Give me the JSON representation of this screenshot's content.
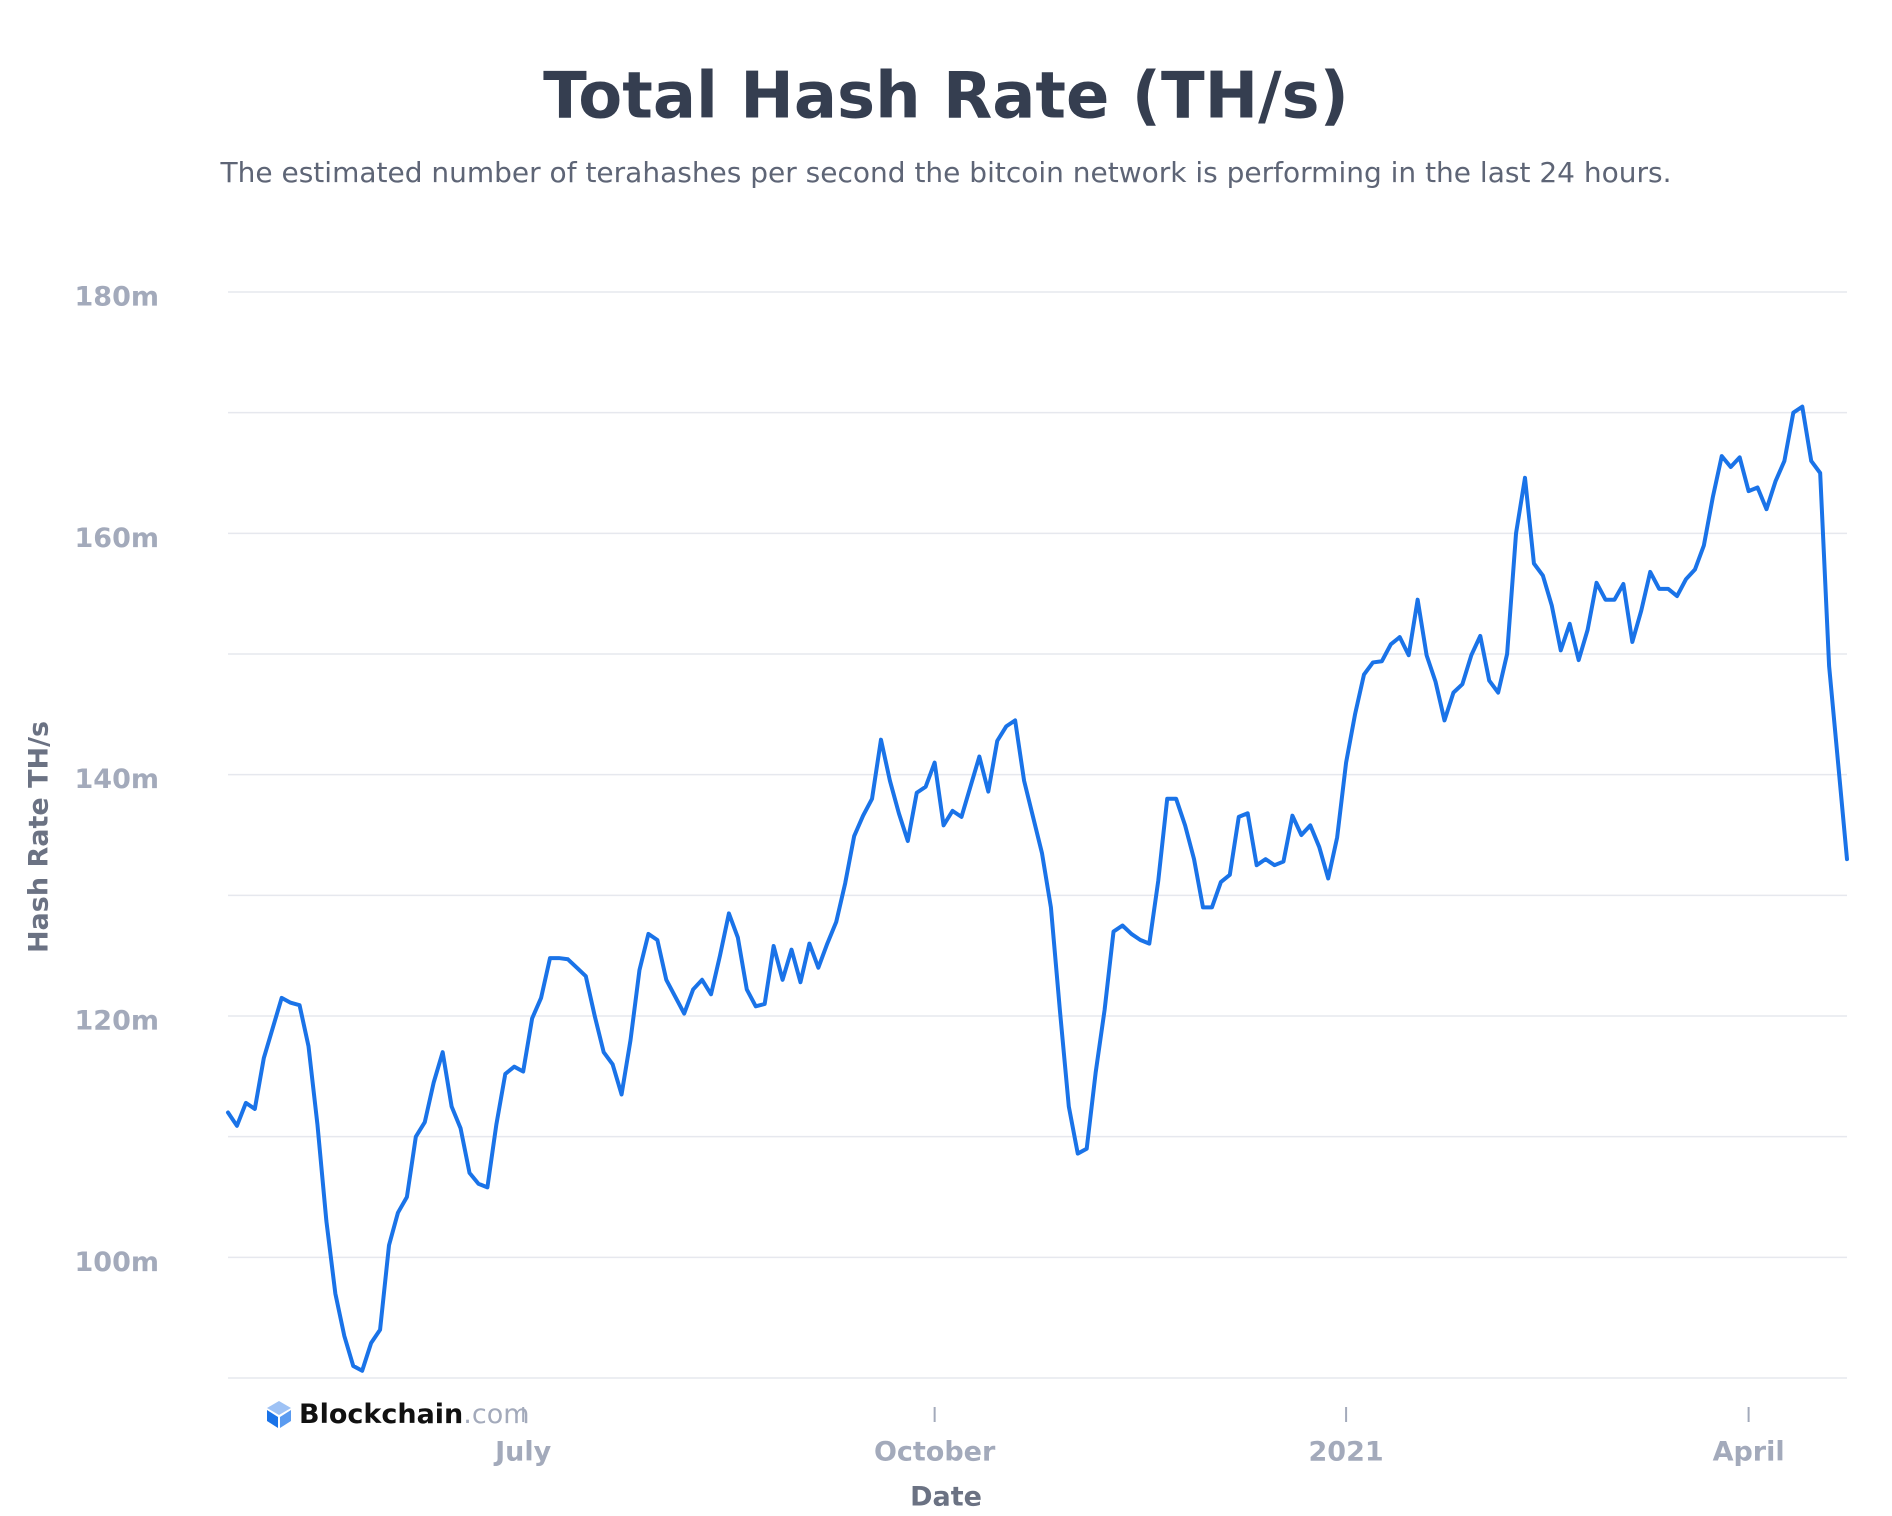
{
  "chart_data": {
    "type": "line",
    "title": "Total Hash Rate (TH/s)",
    "subtitle": "The estimated number of terahashes per second the bitcoin network is performing in the last 24 hours.",
    "x_label": "Date",
    "y_label": "Hash Rate TH/s",
    "watermark": {
      "name": "Blockchain",
      "suffix": ".com"
    },
    "categories": [
      null,
      null,
      null,
      null,
      null,
      null,
      null,
      null,
      null,
      null,
      null,
      null,
      null,
      null,
      null,
      null,
      null,
      null,
      null,
      null,
      null,
      null,
      null,
      null,
      null,
      null,
      null,
      null,
      null,
      null,
      null,
      null,
      null,
      "July",
      null,
      null,
      null,
      null,
      null,
      null,
      null,
      null,
      null,
      null,
      null,
      null,
      null,
      null,
      null,
      null,
      null,
      null,
      null,
      null,
      null,
      null,
      null,
      null,
      null,
      null,
      null,
      null,
      null,
      null,
      null,
      null,
      null,
      null,
      null,
      null,
      null,
      null,
      null,
      null,
      null,
      null,
      null,
      null,
      null,
      "October",
      null,
      null,
      null,
      null,
      null,
      null,
      null,
      null,
      null,
      null,
      null,
      null,
      null,
      null,
      null,
      null,
      null,
      null,
      null,
      null,
      null,
      null,
      null,
      null,
      null,
      null,
      null,
      null,
      null,
      null,
      null,
      null,
      null,
      null,
      null,
      null,
      null,
      null,
      null,
      null,
      null,
      null,
      null,
      null,
      null,
      "2021",
      null,
      null,
      null,
      null,
      null,
      null,
      null,
      null,
      null,
      null,
      null,
      null,
      null,
      null,
      null,
      null,
      null,
      null,
      null,
      null,
      null,
      null,
      null,
      null,
      null,
      null,
      null,
      null,
      null,
      null,
      null,
      null,
      null,
      null,
      null,
      null,
      null,
      null,
      null,
      null,
      null,
      null,
      null,
      null,
      "April",
      null,
      null,
      null,
      null,
      null,
      null,
      null,
      null,
      null,
      null,
      null
    ],
    "series": [
      {
        "name": "Hash Rate",
        "color": "#1a73e8",
        "values": [
          112,
          110.9,
          112.8,
          112.3,
          116.5,
          119,
          121.5,
          121.1,
          120.9,
          117.5,
          111,
          103,
          97,
          93.5,
          91,
          90.6,
          92.9,
          94,
          101,
          103.7,
          105,
          110,
          111.2,
          114.5,
          117,
          112.5,
          110.7,
          107,
          106.1,
          105.8,
          111,
          115.2,
          115.8,
          115.4,
          119.8,
          121.5,
          124.8,
          124.8,
          124.7,
          124,
          123.3,
          120,
          117,
          116,
          113.5,
          118,
          123.8,
          126.8,
          126.3,
          123,
          121.6,
          120.2,
          122.2,
          123,
          121.8,
          125,
          128.5,
          126.5,
          122.2,
          120.8,
          121,
          125.8,
          123,
          125.5,
          122.8,
          126,
          124,
          126,
          127.8,
          131,
          134.9,
          136.6,
          138,
          142.9,
          139.5,
          136.8,
          134.5,
          138.5,
          139,
          141,
          135.8,
          137,
          136.5,
          139,
          141.5,
          138.6,
          142.8,
          144,
          144.5,
          139.5,
          136.5,
          133.5,
          129,
          120.5,
          112.5,
          108.6,
          109,
          115.3,
          120.5,
          127,
          127.5,
          126.8,
          126.3,
          126,
          131.2,
          138,
          138,
          135.8,
          133,
          129,
          129,
          131.1,
          131.7,
          136.5,
          136.8,
          132.5,
          133,
          132.5,
          132.8,
          136.6,
          135,
          135.8,
          134,
          131.4,
          134.8,
          141,
          145,
          148.3,
          149.3,
          149.4,
          150.8,
          151.4,
          149.9,
          154.5,
          149.9,
          147.7,
          144.5,
          146.8,
          147.5,
          149.9,
          151.5,
          147.8,
          146.8,
          150,
          160,
          164.6,
          157.5,
          156.5,
          154,
          150.3,
          152.5,
          149.5,
          152,
          155.9,
          154.5,
          154.5,
          155.8,
          151,
          153.6,
          156.8,
          155.4,
          155.4,
          154.8,
          156.2,
          157,
          159,
          163,
          166.4,
          165.5,
          166.3,
          163.5,
          163.8,
          162,
          164.3,
          166,
          170,
          170.5,
          166,
          165,
          149,
          141,
          133
        ]
      }
    ],
    "ylim": [
      90,
      180
    ],
    "yticks": [
      {
        "value": 100,
        "label": "100m"
      },
      {
        "value": 120,
        "label": "120m"
      },
      {
        "value": 140,
        "label": "140m"
      },
      {
        "value": 160,
        "label": "160m"
      },
      {
        "value": 180,
        "label": "180m"
      }
    ],
    "ygrid": [
      90,
      100,
      110,
      120,
      130,
      140,
      150,
      160,
      170,
      180
    ],
    "grid": true
  }
}
